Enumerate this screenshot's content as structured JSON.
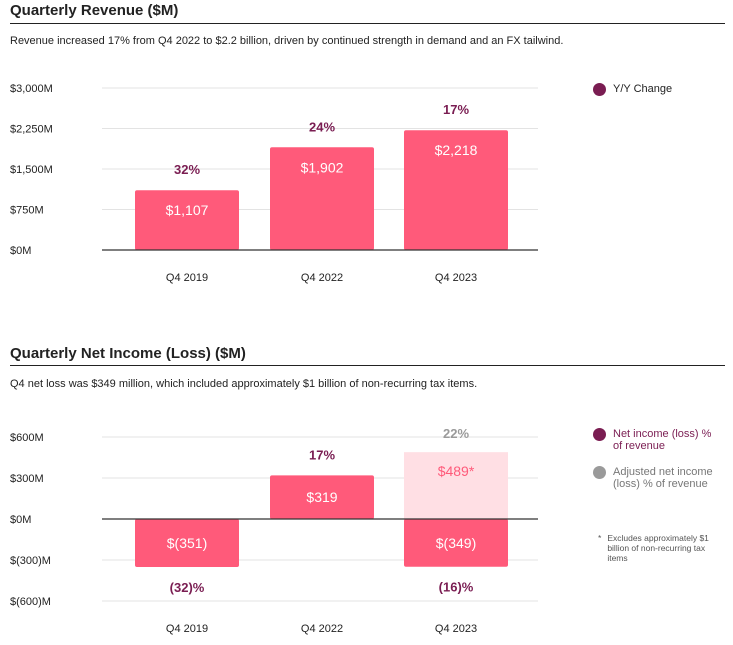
{
  "colors": {
    "bar": "#ff5a7a",
    "bar_adjusted": "#ffdfe4",
    "label": "#7a1d52",
    "gray": "#9a9a9a"
  },
  "revenue": {
    "title": "Quarterly Revenue ($M)",
    "description": "Revenue increased 17% from Q4 2022 to $2.2 billion, driven by continued strength in demand and an FX tailwind.",
    "legend": [
      {
        "label": "Y/Y Change",
        "color": "#7a1d52"
      }
    ]
  },
  "net_income": {
    "title": "Quarterly Net Income (Loss) ($M)",
    "description": "Q4 net loss was $349 million, which included approximately $1 billion of non-recurring tax items.",
    "legend": [
      {
        "label": "Net income (loss) % of revenue",
        "color": "#7a1d52"
      },
      {
        "label": "Adjusted net income (loss) % of revenue",
        "color": "#9a9a9a"
      }
    ],
    "footnote_mark": "*",
    "footnote": "Excludes approximately $1 billion of non-recurring tax items"
  },
  "chart_data": [
    {
      "type": "bar",
      "title": "Quarterly Revenue ($M)",
      "categories": [
        "Q4 2019",
        "Q4 2022",
        "Q4 2023"
      ],
      "values": [
        1107,
        1902,
        2218
      ],
      "value_labels": [
        "$1,107",
        "$1,902",
        "$2,218"
      ],
      "yoy_labels": [
        "32%",
        "24%",
        "17%"
      ],
      "ylim": [
        0,
        3000
      ],
      "yticks": [
        0,
        750,
        1500,
        2250,
        3000
      ],
      "ytick_labels": [
        "$0M",
        "$750M",
        "$1,500M",
        "$2,250M",
        "$3,000M"
      ],
      "grid": true,
      "legend_position": "top-right"
    },
    {
      "type": "bar",
      "title": "Quarterly Net Income (Loss) ($M)",
      "categories": [
        "Q4 2019",
        "Q4 2022",
        "Q4 2023"
      ],
      "values": [
        -351,
        319,
        -349
      ],
      "value_labels": [
        "$(351)",
        "$319",
        "$(349)"
      ],
      "margin_labels": [
        "(32)%",
        "17%",
        "(16)%"
      ],
      "adjusted": {
        "category": "Q4 2023",
        "value": 489,
        "value_label": "$489*",
        "margin_label": "22%"
      },
      "ylim": [
        -600,
        600
      ],
      "yticks": [
        -600,
        -300,
        0,
        300,
        600
      ],
      "ytick_labels": [
        "$(600)M",
        "$(300)M",
        "$0M",
        "$300M",
        "$600M"
      ],
      "grid": true,
      "legend_position": "top-right"
    }
  ]
}
